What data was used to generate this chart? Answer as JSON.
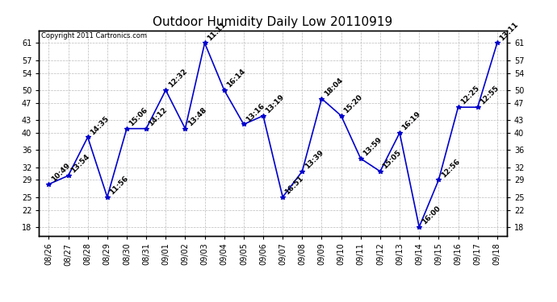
{
  "title": "Outdoor Humidity Daily Low 20110919",
  "copyright": "Copyright 2011 Cartronics.com",
  "x_labels": [
    "08/26",
    "08/27",
    "08/28",
    "08/29",
    "08/30",
    "08/31",
    "09/01",
    "09/02",
    "09/03",
    "09/04",
    "09/05",
    "09/06",
    "09/07",
    "09/08",
    "09/09",
    "09/10",
    "09/11",
    "09/12",
    "09/13",
    "09/14",
    "09/15",
    "09/16",
    "09/17",
    "09/18"
  ],
  "y_values": [
    28,
    30,
    39,
    25,
    41,
    41,
    50,
    41,
    61,
    50,
    42,
    44,
    25,
    31,
    48,
    44,
    34,
    31,
    40,
    18,
    29,
    46,
    46,
    61
  ],
  "point_labels": [
    "10:49",
    "13:54",
    "14:35",
    "11:56",
    "15:06",
    "14:12",
    "12:32",
    "13:48",
    "11:11",
    "16:14",
    "13:16",
    "13:19",
    "16:51",
    "13:39",
    "18:04",
    "15:20",
    "13:59",
    "15:05",
    "16:19",
    "16:00",
    "12:56",
    "12:25",
    "12:55",
    "13:11"
  ],
  "line_color": "#0000cc",
  "marker_color": "#0000cc",
  "bg_color": "#ffffff",
  "grid_color": "#bbbbbb",
  "y_ticks": [
    18,
    22,
    25,
    29,
    32,
    36,
    40,
    43,
    47,
    50,
    54,
    57,
    61
  ],
  "ylim": [
    16,
    64
  ],
  "title_fontsize": 11,
  "label_fontsize": 6.5,
  "tick_fontsize": 7,
  "copyright_fontsize": 6
}
